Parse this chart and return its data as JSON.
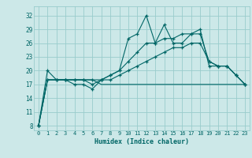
{
  "xlabel": "Humidex (Indice chaleur)",
  "bg_color": "#cce8e8",
  "grid_color": "#99cccc",
  "line_color": "#006666",
  "xlim": [
    -0.5,
    23.5
  ],
  "ylim": [
    7,
    34
  ],
  "yticks": [
    8,
    11,
    14,
    17,
    20,
    23,
    26,
    29,
    32
  ],
  "xticks": [
    0,
    1,
    2,
    3,
    4,
    5,
    6,
    7,
    8,
    9,
    10,
    11,
    12,
    13,
    14,
    15,
    16,
    17,
    18,
    19,
    20,
    21,
    22,
    23
  ],
  "line1_x": [
    0,
    1,
    2,
    3,
    4,
    5,
    6,
    7,
    8,
    9,
    10,
    11,
    12,
    13,
    14,
    15,
    16,
    17,
    18,
    19,
    20,
    21,
    22,
    23
  ],
  "line1_y": [
    8,
    20,
    18,
    18,
    17,
    17,
    16,
    18,
    19,
    20,
    27,
    28,
    32,
    26,
    30,
    26,
    26,
    28,
    29,
    21,
    21,
    21,
    19,
    17
  ],
  "line2_x": [
    0,
    1,
    2,
    3,
    4,
    5,
    6,
    7,
    8,
    9,
    10,
    11,
    12,
    13,
    14,
    15,
    16,
    17,
    18,
    19,
    20,
    21,
    22,
    23
  ],
  "line2_y": [
    8,
    18,
    18,
    18,
    18,
    18,
    17,
    18,
    19,
    20,
    22,
    24,
    26,
    26,
    27,
    27,
    28,
    28,
    28,
    22,
    21,
    21,
    19,
    17
  ],
  "line3_x": [
    0,
    1,
    2,
    3,
    4,
    5,
    6,
    7,
    8,
    9,
    10,
    11,
    12,
    13,
    14,
    15,
    16,
    17,
    18,
    19,
    20,
    21,
    22,
    23
  ],
  "line3_y": [
    8,
    18,
    18,
    18,
    18,
    18,
    18,
    18,
    18,
    19,
    20,
    21,
    22,
    23,
    24,
    25,
    25,
    26,
    26,
    22,
    21,
    21,
    19,
    17
  ],
  "line4_x": [
    0,
    1,
    2,
    3,
    4,
    5,
    6,
    7,
    8,
    9,
    10,
    11,
    12,
    13,
    14,
    15,
    16,
    17,
    18,
    19,
    20,
    21,
    22,
    23
  ],
  "line4_y": [
    8,
    18,
    18,
    18,
    18,
    18,
    18,
    17,
    17,
    17,
    17,
    17,
    17,
    17,
    17,
    17,
    17,
    17,
    17,
    17,
    17,
    17,
    17,
    17
  ]
}
